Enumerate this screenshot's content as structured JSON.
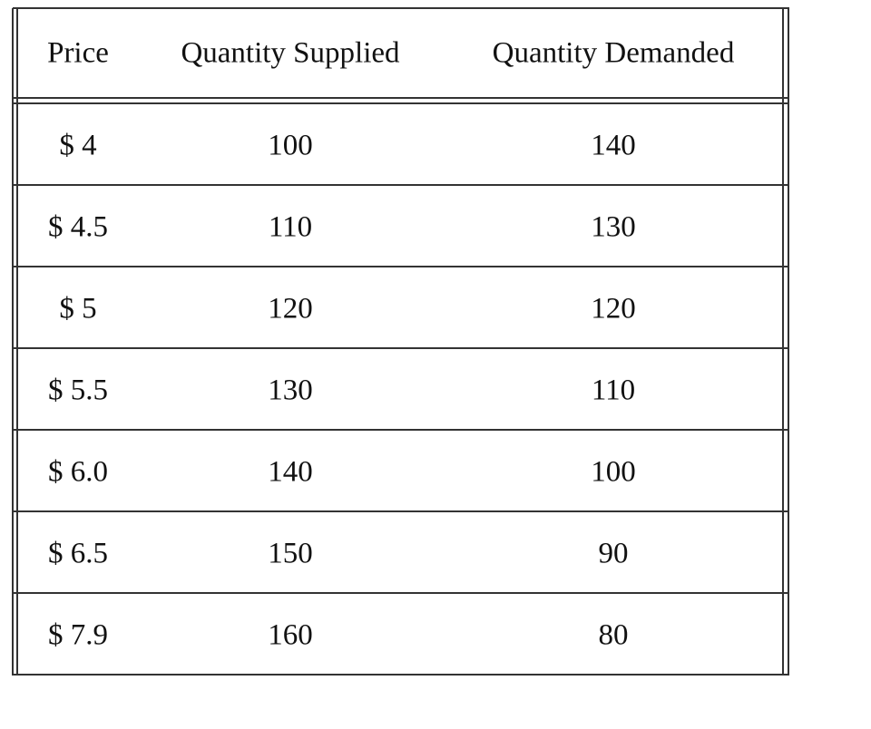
{
  "table": {
    "header": [
      "Price",
      "Quantity Supplied",
      "Quantity Demanded"
    ],
    "rows": [
      [
        "$ 4",
        100,
        140
      ],
      [
        "$ 4.5",
        110,
        130
      ],
      [
        "$ 5",
        120,
        120
      ],
      [
        "$ 5.5",
        130,
        110
      ],
      [
        "$ 6.0",
        140,
        100
      ],
      [
        "$ 6.5",
        150,
        90
      ],
      [
        "$ 7.9",
        160,
        80
      ]
    ]
  }
}
